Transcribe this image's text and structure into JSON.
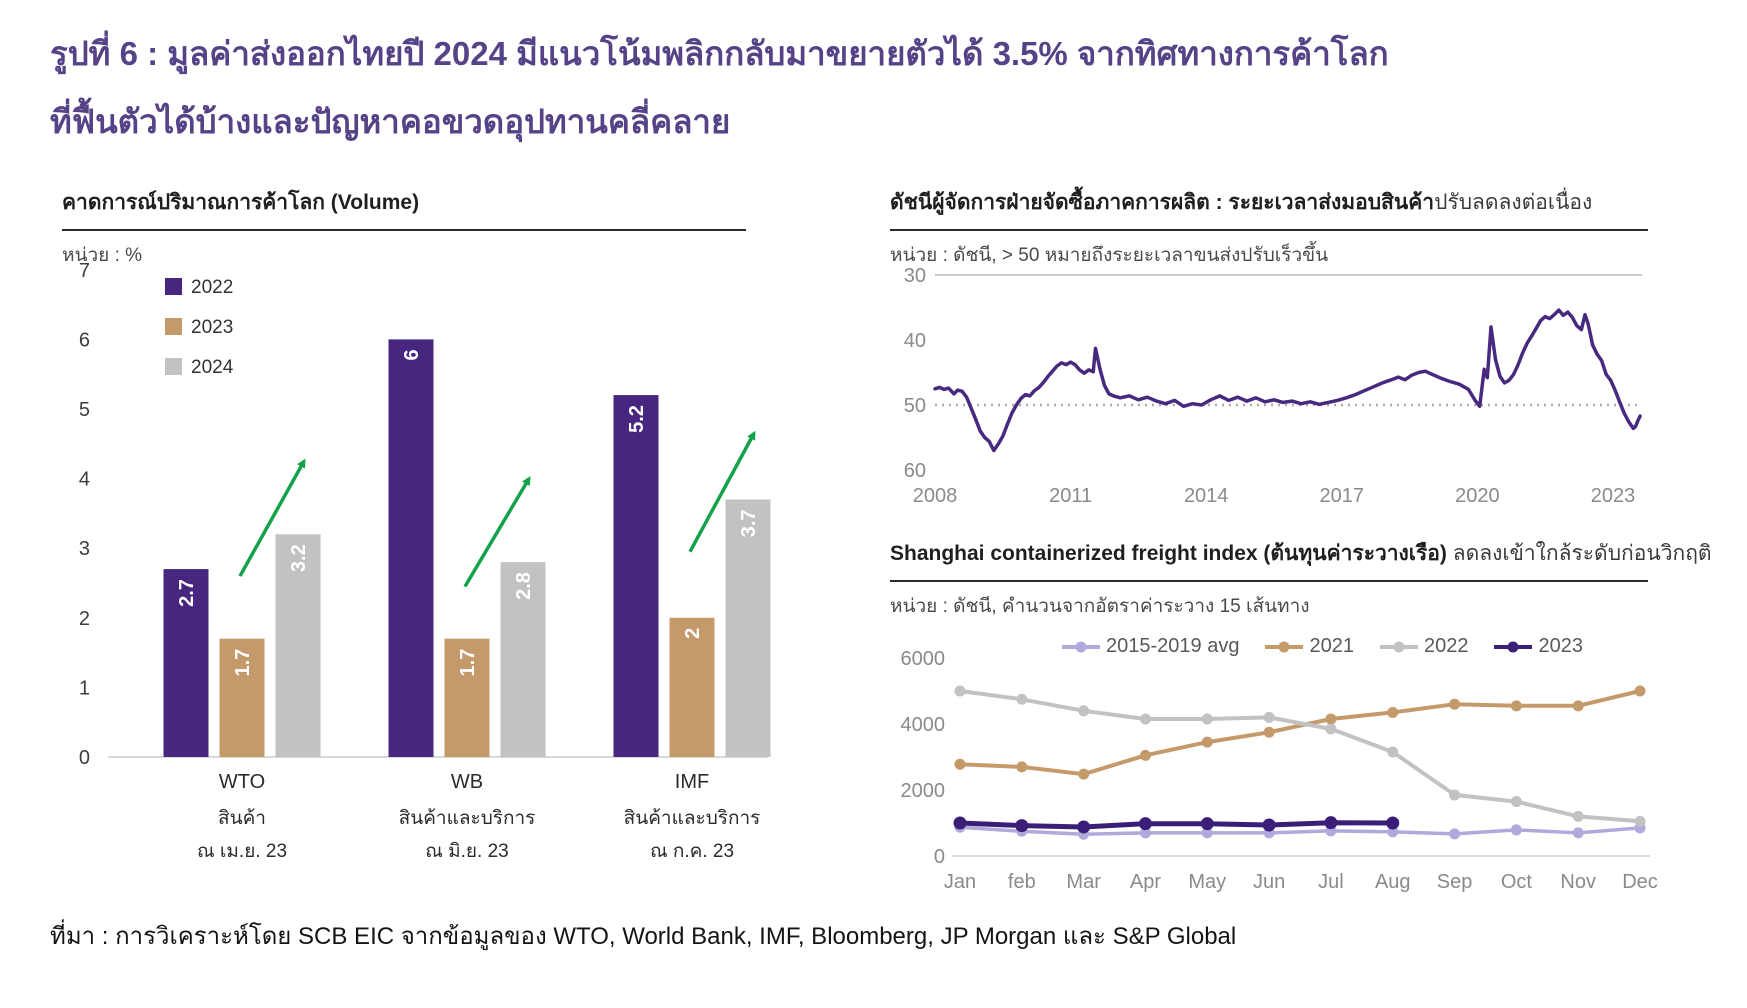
{
  "header": {
    "title_line1": "รูปที่ 6 : มูลค่าส่งออกไทยปี 2024 มีแนวโน้มพลิกกลับมาขยายตัวได้ 3.5% จากทิศทางการค้าโลก",
    "title_line2": "ที่ฟื้นตัวได้บ้างและปัญหาคอขวดอุปทานคลี่คลาย",
    "title_color": "#554287"
  },
  "footer": {
    "source": "ที่มา : การวิเคราะห์โดย SCB EIC จากข้อมูลของ WTO, World Bank, IMF, Bloomberg, JP Morgan และ S&P Global"
  },
  "chart_data": [
    {
      "id": "world-trade-volume-forecast",
      "type": "bar",
      "title": "คาดการณ์ปริมาณการค้าโลก (Volume)",
      "unit_label": "หน่วย : %",
      "ylim": [
        0,
        7
      ],
      "yticks": [
        0,
        1,
        2,
        3,
        4,
        5,
        6,
        7
      ],
      "grid": false,
      "legend_position": "upper-left",
      "categories": [
        "WTO",
        "WB",
        "IMF"
      ],
      "category_sublabels": [
        [
          "สินค้า",
          "ณ เม.ย. 23"
        ],
        [
          "สินค้าและบริการ",
          "ณ มิ.ย. 23"
        ],
        [
          "สินค้าและบริการ",
          "ณ ก.ค. 23"
        ]
      ],
      "series": [
        {
          "name": "2022",
          "color": "#46267E",
          "values": [
            2.7,
            6,
            5.2
          ],
          "labels": [
            "2.7",
            "6",
            "5.2"
          ]
        },
        {
          "name": "2023",
          "color": "#C49A6B",
          "values": [
            1.7,
            1.7,
            2
          ],
          "labels": [
            "1.7",
            "1.7",
            "2"
          ]
        },
        {
          "name": "2024",
          "color": "#C2C2C2",
          "values": [
            3.2,
            2.8,
            3.7
          ],
          "labels": [
            "3.2",
            "2.8",
            "3.7"
          ]
        }
      ],
      "annotations": {
        "arrow_color": "#13A24A",
        "arrows": [
          {
            "category": "WTO",
            "from_value": 2.6,
            "to_value": 4.25
          },
          {
            "category": "WB",
            "from_value": 2.45,
            "to_value": 4.0
          },
          {
            "category": "IMF",
            "from_value": 2.95,
            "to_value": 4.65
          }
        ]
      }
    },
    {
      "id": "pmi-suppliers-delivery-times",
      "type": "line",
      "title_bold": "ดัชนีผู้จัดการฝ่ายจัดซื้อภาคการผลิต : ระยะเวลาส่งมอบสินค้า",
      "title_regular": "ปรับลดลงต่อเนื่อง",
      "unit_label": "หน่วย : ดัชนี, > 50 หมายถึงระยะเวลาขนส่งปรับเร็วขึ้น",
      "x_ticks": [
        2008,
        2011,
        2014,
        2017,
        2020,
        2023
      ],
      "y_ticks": [
        30,
        40,
        50,
        60
      ],
      "y_axis_inverted": true,
      "x_range": [
        2008,
        2023.6
      ],
      "reference_line": {
        "value": 50,
        "style": "dotted"
      },
      "top_rule_value": 30,
      "line_color": "#472A80",
      "points": [
        [
          2008.0,
          47.5
        ],
        [
          2008.1,
          47.3
        ],
        [
          2008.2,
          47.6
        ],
        [
          2008.3,
          47.4
        ],
        [
          2008.42,
          48.3
        ],
        [
          2008.5,
          47.7
        ],
        [
          2008.6,
          47.9
        ],
        [
          2008.7,
          48.8
        ],
        [
          2008.8,
          50.5
        ],
        [
          2008.9,
          52.2
        ],
        [
          2009.0,
          54.0
        ],
        [
          2009.1,
          55.0
        ],
        [
          2009.2,
          55.6
        ],
        [
          2009.3,
          57.0
        ],
        [
          2009.4,
          56.0
        ],
        [
          2009.5,
          54.8
        ],
        [
          2009.6,
          53.0
        ],
        [
          2009.7,
          51.3
        ],
        [
          2009.8,
          50.0
        ],
        [
          2009.9,
          49.0
        ],
        [
          2010.0,
          48.4
        ],
        [
          2010.1,
          48.6
        ],
        [
          2010.2,
          47.8
        ],
        [
          2010.3,
          47.3
        ],
        [
          2010.4,
          46.5
        ],
        [
          2010.5,
          45.6
        ],
        [
          2010.6,
          44.8
        ],
        [
          2010.7,
          44.0
        ],
        [
          2010.8,
          43.5
        ],
        [
          2010.9,
          43.8
        ],
        [
          2011.0,
          43.4
        ],
        [
          2011.1,
          43.8
        ],
        [
          2011.2,
          44.6
        ],
        [
          2011.3,
          45.1
        ],
        [
          2011.4,
          44.6
        ],
        [
          2011.5,
          44.9
        ],
        [
          2011.55,
          41.3
        ],
        [
          2011.65,
          44.5
        ],
        [
          2011.75,
          47.0
        ],
        [
          2011.85,
          48.3
        ],
        [
          2011.95,
          48.6
        ],
        [
          2012.1,
          48.9
        ],
        [
          2012.3,
          48.6
        ],
        [
          2012.5,
          49.2
        ],
        [
          2012.7,
          48.8
        ],
        [
          2012.9,
          49.4
        ],
        [
          2013.1,
          49.8
        ],
        [
          2013.3,
          49.3
        ],
        [
          2013.5,
          50.2
        ],
        [
          2013.7,
          49.8
        ],
        [
          2013.9,
          50.0
        ],
        [
          2014.1,
          49.2
        ],
        [
          2014.3,
          48.6
        ],
        [
          2014.5,
          49.3
        ],
        [
          2014.7,
          48.8
        ],
        [
          2014.9,
          49.4
        ],
        [
          2015.1,
          48.9
        ],
        [
          2015.3,
          49.5
        ],
        [
          2015.5,
          49.2
        ],
        [
          2015.7,
          49.6
        ],
        [
          2015.9,
          49.4
        ],
        [
          2016.1,
          49.8
        ],
        [
          2016.3,
          49.5
        ],
        [
          2016.5,
          49.9
        ],
        [
          2016.7,
          49.6
        ],
        [
          2016.9,
          49.3
        ],
        [
          2017.1,
          48.9
        ],
        [
          2017.3,
          48.4
        ],
        [
          2017.5,
          47.8
        ],
        [
          2017.7,
          47.2
        ],
        [
          2017.9,
          46.6
        ],
        [
          2018.1,
          46.1
        ],
        [
          2018.25,
          45.7
        ],
        [
          2018.4,
          46.1
        ],
        [
          2018.55,
          45.4
        ],
        [
          2018.7,
          45.0
        ],
        [
          2018.85,
          44.8
        ],
        [
          2019.0,
          45.3
        ],
        [
          2019.2,
          45.9
        ],
        [
          2019.4,
          46.4
        ],
        [
          2019.6,
          46.8
        ],
        [
          2019.8,
          47.6
        ],
        [
          2019.95,
          49.3
        ],
        [
          2020.05,
          50.2
        ],
        [
          2020.15,
          44.5
        ],
        [
          2020.22,
          45.8
        ],
        [
          2020.3,
          38.0
        ],
        [
          2020.4,
          43.0
        ],
        [
          2020.5,
          45.6
        ],
        [
          2020.6,
          46.6
        ],
        [
          2020.7,
          46.2
        ],
        [
          2020.8,
          45.3
        ],
        [
          2020.9,
          43.8
        ],
        [
          2021.0,
          42.0
        ],
        [
          2021.1,
          40.5
        ],
        [
          2021.2,
          39.4
        ],
        [
          2021.3,
          38.2
        ],
        [
          2021.4,
          37.0
        ],
        [
          2021.5,
          36.4
        ],
        [
          2021.6,
          36.7
        ],
        [
          2021.7,
          36.1
        ],
        [
          2021.8,
          35.4
        ],
        [
          2021.9,
          36.2
        ],
        [
          2022.0,
          35.7
        ],
        [
          2022.1,
          36.5
        ],
        [
          2022.2,
          37.8
        ],
        [
          2022.3,
          38.4
        ],
        [
          2022.38,
          36.1
        ],
        [
          2022.45,
          37.5
        ],
        [
          2022.55,
          40.8
        ],
        [
          2022.65,
          42.2
        ],
        [
          2022.75,
          43.2
        ],
        [
          2022.85,
          45.3
        ],
        [
          2022.95,
          46.2
        ],
        [
          2023.05,
          47.8
        ],
        [
          2023.15,
          49.6
        ],
        [
          2023.25,
          51.3
        ],
        [
          2023.35,
          52.6
        ],
        [
          2023.45,
          53.6
        ],
        [
          2023.5,
          53.3
        ],
        [
          2023.55,
          52.4
        ],
        [
          2023.6,
          51.7
        ]
      ]
    },
    {
      "id": "shanghai-containerized-freight-index",
      "type": "line",
      "title_bold": "Shanghai containerized freight index (ต้นทุนค่าระวางเรือ)",
      "title_regular": " ลดลงเข้าใกล้ระดับก่อนวิกฤติ",
      "unit_label": "หน่วย : ดัชนี, คำนวนจากอัตราค่าระวาง 15 เส้นทาง",
      "categories": [
        "Jan",
        "feb",
        "Mar",
        "Apr",
        "May",
        "Jun",
        "Jul",
        "Aug",
        "Sep",
        "Oct",
        "Nov",
        "Dec"
      ],
      "y_ticks": [
        0,
        2000,
        4000,
        6000
      ],
      "ylim": [
        0,
        6000
      ],
      "legend_position": "top",
      "series": [
        {
          "name": "2015-2019 avg",
          "color": "#AFAADB",
          "values": [
            870,
            750,
            660,
            700,
            700,
            700,
            760,
            730,
            670,
            790,
            700,
            850
          ]
        },
        {
          "name": "2021",
          "color": "#C49A6B",
          "values": [
            2780,
            2700,
            2480,
            3050,
            3450,
            3750,
            4150,
            4350,
            4600,
            4550,
            4550,
            5000
          ]
        },
        {
          "name": "2022",
          "color": "#C2C2C2",
          "values": [
            5000,
            4750,
            4400,
            4150,
            4150,
            4200,
            3850,
            3150,
            1850,
            1650,
            1200,
            1050
          ]
        },
        {
          "name": "2023",
          "color": "#3A1E78",
          "values": [
            1000,
            920,
            880,
            980,
            980,
            940,
            1010,
            1000,
            null,
            null,
            null,
            null
          ]
        }
      ]
    }
  ]
}
